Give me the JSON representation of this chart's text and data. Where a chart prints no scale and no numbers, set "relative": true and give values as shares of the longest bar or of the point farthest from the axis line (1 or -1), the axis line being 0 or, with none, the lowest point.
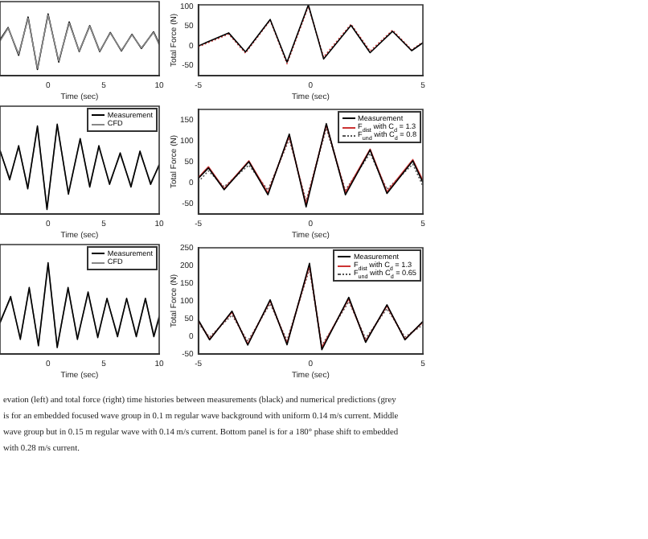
{
  "chart_data": [
    {
      "type": "line",
      "xlabel": "Time (sec)",
      "relative": true,
      "tick_labels": "x",
      "xlim": [
        -4.33,
        10
      ],
      "xticks": [
        0,
        5,
        10
      ],
      "series": [
        {
          "color": "#888888",
          "x": [
            -4.33,
            -3.6,
            -2.65,
            -1.8,
            -0.96,
            0,
            0.96,
            1.9,
            2.8,
            3.75,
            4.65,
            5.6,
            6.6,
            7.55,
            8.4,
            9.5,
            10
          ],
          "values": [
            0.56,
            0.77,
            0.35,
            0.93,
            0.12,
            0.98,
            0.24,
            0.85,
            0.4,
            0.8,
            0.4,
            0.69,
            0.41,
            0.66,
            0.45,
            0.7,
            0.5
          ]
        },
        {
          "color": "#000000",
          "x": [
            -4.33,
            -3.6,
            -2.65,
            -1.8,
            -0.96,
            0,
            0.96,
            1.9,
            2.8,
            3.75,
            4.65,
            5.6,
            6.6,
            7.55,
            8.4,
            9.5,
            10
          ],
          "values": [
            0.58,
            0.78,
            0.33,
            0.95,
            0.1,
            1,
            0.22,
            0.87,
            0.39,
            0.81,
            0.39,
            0.7,
            0.4,
            0.67,
            0.44,
            0.71,
            0.52
          ]
        }
      ]
    },
    {
      "type": "line",
      "xlabel": "Time (sec)",
      "ylabel": "Total Force (N)",
      "xlim": [
        -5,
        5
      ],
      "xticks": [
        -5,
        0,
        5
      ],
      "ylim": [
        -75,
        104
      ],
      "yticks": [
        -50,
        0,
        50,
        100
      ],
      "series": [
        {
          "color": "#000000",
          "x": [
            -5,
            -3.65,
            -2.9,
            -1.8,
            -1.05,
            -0.1,
            0.58,
            1.8,
            2.65,
            3.65,
            4.5,
            5
          ],
          "values": [
            0,
            33,
            -15,
            67,
            -41,
            104,
            -33,
            52,
            -17,
            37,
            -12,
            8
          ]
        },
        {
          "color": "#cc3333",
          "line_style": "dotted",
          "x": [
            -5,
            -3.65,
            -2.9,
            -1.8,
            -1.05,
            -0.1,
            0.58,
            1.8,
            2.65,
            3.65,
            4.5,
            5
          ],
          "values": [
            -2,
            30,
            -18,
            65,
            -45,
            100,
            -28,
            55,
            -13,
            40,
            -10,
            10
          ]
        }
      ]
    },
    {
      "type": "line",
      "xlabel": "Time (sec)",
      "relative": true,
      "tick_labels": "x",
      "legend": "top right",
      "xlim": [
        -4.33,
        10
      ],
      "xticks": [
        0,
        5,
        10
      ],
      "series": [
        {
          "name": "Measurement",
          "color": "#000000",
          "x": [
            -4.33,
            -3.46,
            -2.65,
            -1.83,
            -0.96,
            -0.1,
            0.82,
            1.83,
            2.89,
            3.75,
            4.57,
            5.53,
            6.49,
            7.46,
            8.27,
            9.23,
            10
          ],
          "values": [
            0.71,
            0.38,
            0.76,
            0.28,
            0.98,
            0.05,
            1,
            0.22,
            0.84,
            0.3,
            0.76,
            0.33,
            0.68,
            0.3,
            0.7,
            0.33,
            0.55
          ]
        },
        {
          "name": "CFD",
          "color": "#888888",
          "x": [
            -4.33,
            -3.46,
            -2.65,
            -1.83,
            -0.96,
            -0.1,
            0.82,
            1.83,
            2.89,
            3.75,
            4.57,
            5.53,
            6.49,
            7.46,
            8.27,
            9.23,
            10
          ],
          "values": [
            0.7,
            0.4,
            0.74,
            0.3,
            0.96,
            0.07,
            0.98,
            0.24,
            0.82,
            0.32,
            0.74,
            0.35,
            0.66,
            0.32,
            0.68,
            0.35,
            0.53
          ]
        }
      ]
    },
    {
      "type": "line",
      "xlabel": "Time (sec)",
      "ylabel": "Total Force (N)",
      "legend": "top right",
      "xlim": [
        -5,
        5
      ],
      "xticks": [
        -5,
        0,
        5
      ],
      "ylim": [
        -75,
        175
      ],
      "yticks": [
        -50,
        0,
        50,
        100,
        150
      ],
      "series": [
        {
          "name": "Measurement",
          "color": "#000000",
          "x": [
            -5,
            -4.55,
            -3.85,
            -2.75,
            -1.9,
            -0.95,
            -0.2,
            0.7,
            1.55,
            2.65,
            3.4,
            4.55,
            5
          ],
          "values": [
            10,
            35,
            -17,
            50,
            -29,
            116,
            -58,
            141,
            -29,
            78,
            -26,
            52,
            0
          ]
        },
        {
          "name": "F$_{dist}$ with C$_{d}$ = 1.3",
          "color": "#cc3333",
          "x": [
            -5,
            -4.55,
            -3.85,
            -2.75,
            -1.9,
            -0.95,
            -0.2,
            0.7,
            1.55,
            2.65,
            3.4,
            4.55,
            5
          ],
          "values": [
            12,
            38,
            -15,
            52,
            -25,
            112,
            -52,
            138,
            -24,
            80,
            -22,
            55,
            5
          ]
        },
        {
          "name": "F$_{und}$ with C$_{d}$ = 0.8",
          "color": "#555555",
          "line_style": "dotted",
          "x": [
            -5,
            -4.55,
            -3.85,
            -2.75,
            -1.9,
            -0.95,
            -0.2,
            0.7,
            1.55,
            2.65,
            3.4,
            4.55,
            5
          ],
          "values": [
            2,
            28,
            -10,
            42,
            -18,
            104,
            -44,
            130,
            -18,
            70,
            -16,
            44,
            -8
          ]
        }
      ]
    },
    {
      "type": "line",
      "xlabel": "Time (sec)",
      "relative": true,
      "tick_labels": "x",
      "legend": "top right",
      "xlim": [
        -4.33,
        10
      ],
      "xticks": [
        0,
        5,
        10
      ],
      "series": [
        {
          "name": "Measurement",
          "color": "#000000",
          "x": [
            -4.33,
            -3.37,
            -2.5,
            -1.7,
            -0.87,
            0,
            0.82,
            1.8,
            2.64,
            3.6,
            4.47,
            5.3,
            6.25,
            7.07,
            7.94,
            8.76,
            9.52,
            10
          ],
          "values": [
            0.34,
            0.63,
            0.16,
            0.73,
            0.09,
            1,
            0.07,
            0.73,
            0.16,
            0.68,
            0.18,
            0.61,
            0.19,
            0.61,
            0.19,
            0.61,
            0.19,
            0.4
          ]
        },
        {
          "name": "CFD",
          "color": "#888888",
          "x": [
            -4.33,
            -3.37,
            -2.5,
            -1.7,
            -0.87,
            0,
            0.82,
            1.8,
            2.64,
            3.6,
            4.47,
            5.3,
            6.25,
            7.07,
            7.94,
            8.76,
            9.52,
            10
          ],
          "values": [
            0.36,
            0.61,
            0.18,
            0.71,
            0.11,
            0.97,
            0.09,
            0.71,
            0.18,
            0.66,
            0.2,
            0.6,
            0.21,
            0.6,
            0.21,
            0.6,
            0.21,
            0.42
          ]
        }
      ]
    },
    {
      "type": "line",
      "xlabel": "Time (sec)",
      "ylabel": "Total Force (N)",
      "legend": "top right",
      "xlim": [
        -5,
        5
      ],
      "xticks": [
        -5,
        0,
        5
      ],
      "ylim": [
        -50,
        250
      ],
      "yticks": [
        -50,
        0,
        50,
        100,
        150,
        200,
        250
      ],
      "series": [
        {
          "name": "Measurement",
          "color": "#000000",
          "x": [
            -5,
            -4.5,
            -3.5,
            -2.8,
            -1.8,
            -1.05,
            -0.05,
            0.5,
            1.7,
            2.45,
            3.4,
            4.2,
            5
          ],
          "values": [
            46,
            -10,
            71,
            -25,
            103,
            -24,
            206,
            -38,
            110,
            -17,
            89,
            -10,
            42
          ]
        },
        {
          "name": "F$_{dist}$ with C$_{d}$ = 1.3",
          "color": "#cc3333",
          "x": [
            -5,
            -4.5,
            -3.5,
            -2.8,
            -1.8,
            -1.05,
            -0.05,
            0.5,
            1.7,
            2.45,
            3.4,
            4.2,
            5
          ],
          "values": [
            44,
            -8,
            68,
            -22,
            100,
            -20,
            200,
            -32,
            106,
            -14,
            86,
            -8,
            40
          ]
        },
        {
          "name": "F$_{und}$ with C$_{d}$ = 0.65",
          "color": "#555555",
          "line_style": "dotted",
          "x": [
            -5,
            -4.5,
            -3.5,
            -2.8,
            -1.8,
            -1.05,
            -0.05,
            0.5,
            1.7,
            2.45,
            3.4,
            4.2,
            5
          ],
          "values": [
            36,
            -2,
            60,
            -14,
            92,
            -12,
            190,
            -26,
            98,
            -6,
            78,
            -2,
            32
          ]
        }
      ],
      "annotations": [
        "evation (left) and total force (right) time histories between measurements (black) and numerical predictions (grey",
        "is for an embedded focused wave group in 0.1 m regular wave background with uniform 0.14 m/s current. Middle",
        "wave group but in 0.15 m regular wave with 0.14 m/s current. Bottom panel is for a 180° phase shift to embedded",
        "with 0.28 m/s current."
      ]
    }
  ]
}
